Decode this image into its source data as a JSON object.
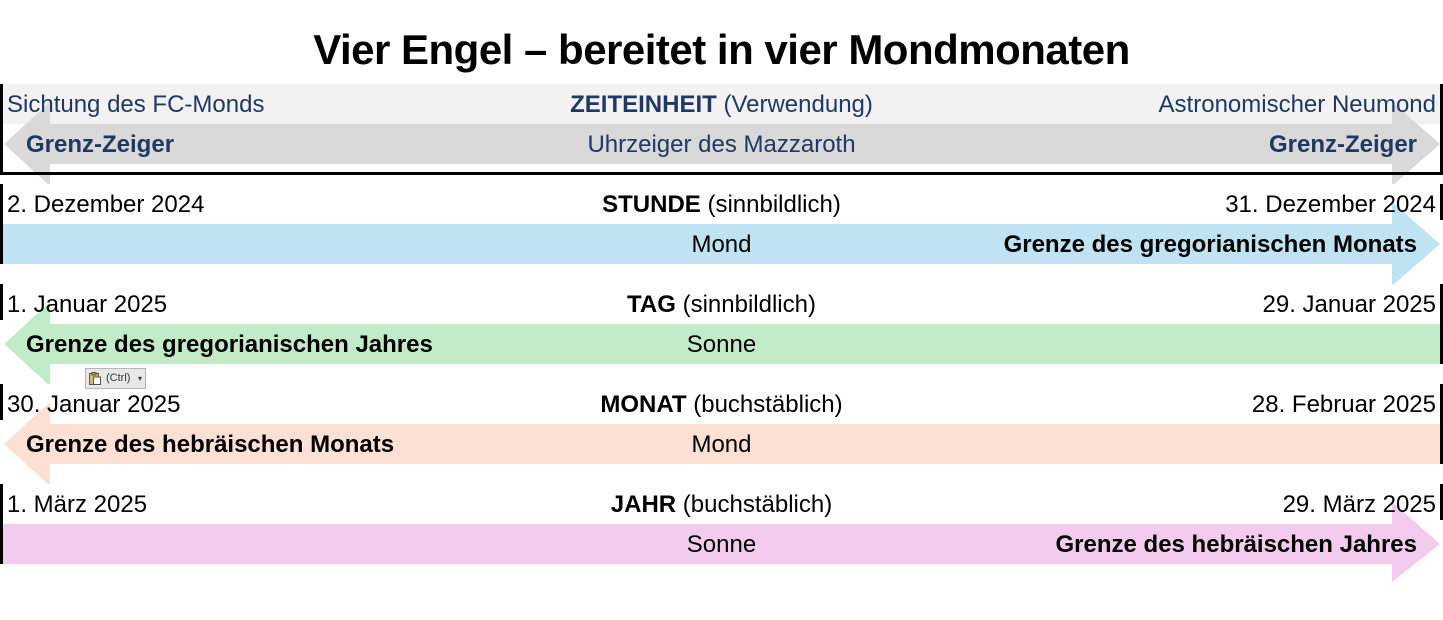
{
  "title": "Vier Engel – bereitet in vier Mondmonaten",
  "header": {
    "left_top": "Sichtung des FC-Monds",
    "center_top_bold": "ZEITEINHEIT",
    "center_top_rest": " (Verwendung)",
    "right_top": "Astronomischer Neumond",
    "left_bottom": "Grenz-Zeiger",
    "center_bottom": "Uhrzeiger des Mazzaroth",
    "right_bottom": "Grenz-Zeiger",
    "band_color": "#d9d9d9",
    "bg_color": "#f2f2f2",
    "text_color": "#1f3864"
  },
  "rows": [
    {
      "date_start": "2. Dezember 2024",
      "unit": "STUNDE",
      "usage": " (sinnbildlich)",
      "date_end": "31. Dezember 2024",
      "body": "Mond",
      "boundary": "Grenze des gregorianischen Monats",
      "direction": "right",
      "color": "#c0e3f3"
    },
    {
      "date_start": "1. Januar 2025",
      "unit": "TAG",
      "usage": " (sinnbildlich)",
      "date_end": "29. Januar 2025",
      "body": "Sonne",
      "boundary": "Grenze des gregorianischen Jahres",
      "direction": "left",
      "color": "#c2ecc8"
    },
    {
      "date_start": "30. Januar 2025",
      "unit": "MONAT",
      "usage": " (buchstäblich)",
      "date_end": "28. Februar 2025",
      "body": "Mond",
      "boundary": "Grenze des hebräischen Monats",
      "direction": "left",
      "color": "#fbe0d3"
    },
    {
      "date_start": "1. März 2025",
      "unit": "JAHR",
      "usage": " (buchstäblich)",
      "date_end": "29. März 2025",
      "body": "Sonne",
      "boundary": "Grenze des hebräischen Jahres",
      "direction": "right",
      "color": "#f2cbee"
    }
  ],
  "paste_options": {
    "label": "(Ctrl)",
    "icon": "clipboard-icon"
  }
}
